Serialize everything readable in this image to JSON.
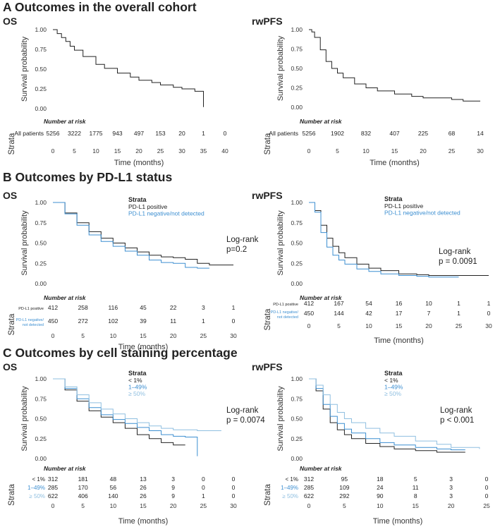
{
  "sections": [
    {
      "letter": "A",
      "title": "Outcomes in the overall cohort"
    },
    {
      "letter": "B",
      "title": "Outcomes by PD-L1 status"
    },
    {
      "letter": "C",
      "title": "Outcomes by cell staining percentage"
    }
  ],
  "chart_data": [
    {
      "id": "A-OS",
      "section": "A",
      "type": "line",
      "title": "OS",
      "xlabel": "Time (months)",
      "ylabel": "Survival probability",
      "strata_label": "Strata",
      "xlim": [
        0,
        40
      ],
      "xticks": [
        0,
        5,
        10,
        15,
        20,
        25,
        30,
        35,
        40
      ],
      "ylim": [
        0,
        1
      ],
      "yticks": [
        "0.00",
        "0.25",
        "0.50",
        "0.75",
        "1.00"
      ],
      "legend": null,
      "annotation": null,
      "risk_title": "Number at risk",
      "risk_times": [
        0,
        5,
        10,
        15,
        20,
        25,
        30,
        35,
        40
      ],
      "series": [
        {
          "name": "All patients",
          "color": "#222222",
          "x": [
            0,
            1,
            2,
            3,
            4,
            5,
            7,
            10,
            12,
            15,
            18,
            20,
            23,
            25,
            28,
            30,
            33,
            35,
            35
          ],
          "y": [
            1,
            0.95,
            0.9,
            0.85,
            0.79,
            0.74,
            0.66,
            0.56,
            0.51,
            0.45,
            0.4,
            0.36,
            0.33,
            0.3,
            0.27,
            0.25,
            0.22,
            0.21,
            0.02
          ],
          "risk": [
            "5256",
            "3222",
            "1775",
            "943",
            "497",
            "153",
            "20",
            "1",
            "0"
          ]
        }
      ]
    },
    {
      "id": "A-rwPFS",
      "section": "A",
      "type": "line",
      "title": "rwPFS",
      "xlabel": "Time (months)",
      "ylabel": "Survival probability",
      "strata_label": "Strata",
      "xlim": [
        0,
        30
      ],
      "xticks": [
        0,
        5,
        10,
        15,
        20,
        25,
        30
      ],
      "ylim": [
        0,
        1
      ],
      "yticks": [
        "0.00",
        "0.25",
        "0.50",
        "0.75",
        "1.00"
      ],
      "legend": null,
      "annotation": null,
      "risk_title": "Number at risk",
      "risk_times": [
        0,
        5,
        10,
        15,
        20,
        25,
        30
      ],
      "series": [
        {
          "name": "All patients",
          "color": "#222222",
          "x": [
            0,
            0.5,
            1,
            2,
            3,
            4,
            5,
            6,
            8,
            10,
            12,
            15,
            18,
            20,
            25,
            27,
            30
          ],
          "y": [
            1,
            0.97,
            0.9,
            0.74,
            0.59,
            0.5,
            0.44,
            0.38,
            0.3,
            0.25,
            0.21,
            0.17,
            0.14,
            0.12,
            0.1,
            0.08,
            0.08
          ],
          "risk": [
            "5256",
            "1902",
            "832",
            "407",
            "225",
            "68",
            "14"
          ]
        }
      ]
    },
    {
      "id": "B-OS",
      "section": "B",
      "type": "line",
      "title": "OS",
      "xlabel": "Time (months)",
      "ylabel": "Survival probability",
      "strata_label": "Strata",
      "xlim": [
        0,
        30
      ],
      "xticks": [
        0,
        5,
        10,
        15,
        20,
        25,
        30
      ],
      "ylim": [
        0,
        1
      ],
      "yticks": [
        "0.00",
        "0.25",
        "0.50",
        "0.75",
        "1.00"
      ],
      "legend": {
        "title": "Strata",
        "items": [
          "PD-L1 positive",
          "PD-L1 negative/not detected"
        ]
      },
      "annotation": [
        "Log-rank",
        "p=0.2"
      ],
      "risk_title": "Number at risk",
      "risk_times": [
        0,
        5,
        10,
        15,
        20,
        25,
        30
      ],
      "series": [
        {
          "name": "PD-L1 positive",
          "risk_label": [
            "PD-L1 positive"
          ],
          "color": "#222222",
          "x": [
            0,
            2,
            4,
            6,
            8,
            10,
            12,
            14,
            16,
            18,
            20,
            22,
            24,
            26,
            30
          ],
          "y": [
            1,
            0.87,
            0.75,
            0.64,
            0.56,
            0.5,
            0.44,
            0.39,
            0.35,
            0.33,
            0.32,
            0.3,
            0.25,
            0.23,
            0.23
          ],
          "risk": [
            "412",
            "258",
            "116",
            "45",
            "22",
            "3",
            "1"
          ]
        },
        {
          "name": "PD-L1 negative/not detected",
          "risk_label": [
            "PD-L1 negative/",
            "not detected"
          ],
          "color": "#3d8fd1",
          "x": [
            0,
            2,
            4,
            6,
            8,
            10,
            12,
            14,
            16,
            18,
            20,
            22,
            24,
            26
          ],
          "y": [
            1,
            0.86,
            0.72,
            0.6,
            0.52,
            0.46,
            0.4,
            0.35,
            0.29,
            0.26,
            0.25,
            0.2,
            0.19,
            0.19
          ],
          "risk": [
            "450",
            "272",
            "102",
            "39",
            "11",
            "1",
            "0"
          ]
        }
      ]
    },
    {
      "id": "B-rwPFS",
      "section": "B",
      "type": "line",
      "title": "rwPFS",
      "xlabel": "Time (months)",
      "ylabel": "Survival probability",
      "strata_label": "Strata",
      "xlim": [
        0,
        30
      ],
      "xticks": [
        0,
        5,
        10,
        15,
        20,
        25,
        30
      ],
      "ylim": [
        0,
        1
      ],
      "yticks": [
        "0.00",
        "0.25",
        "0.50",
        "0.75",
        "1.00"
      ],
      "legend": {
        "title": "Strata",
        "items": [
          "PD-L1 positive",
          "PD-L1 negative/not detected"
        ]
      },
      "annotation": [
        "Log-rank",
        "p = 0.0091"
      ],
      "risk_title": "Number at risk",
      "risk_times": [
        0,
        5,
        10,
        15,
        20,
        25,
        30
      ],
      "series": [
        {
          "name": "PD-L1 positive",
          "risk_label": [
            "PD-L1 positive"
          ],
          "color": "#222222",
          "x": [
            0,
            1,
            2,
            3,
            4,
            5,
            6,
            8,
            10,
            12,
            15,
            18,
            20,
            25,
            30
          ],
          "y": [
            1,
            0.9,
            0.72,
            0.56,
            0.46,
            0.38,
            0.32,
            0.24,
            0.19,
            0.16,
            0.12,
            0.11,
            0.1,
            0.1,
            0.1
          ],
          "risk": [
            "412",
            "167",
            "54",
            "16",
            "10",
            "1",
            "1"
          ]
        },
        {
          "name": "PD-L1 negative/not detected",
          "risk_label": [
            "PD-L1 negative/",
            "not detected"
          ],
          "color": "#3d8fd1",
          "x": [
            0,
            1,
            2,
            3,
            4,
            5,
            6,
            8,
            10,
            12,
            15,
            18,
            20,
            25
          ],
          "y": [
            1,
            0.88,
            0.63,
            0.45,
            0.35,
            0.29,
            0.24,
            0.18,
            0.15,
            0.12,
            0.1,
            0.09,
            0.08,
            0.08
          ],
          "risk": [
            "450",
            "144",
            "42",
            "17",
            "7",
            "1",
            "0"
          ]
        }
      ]
    },
    {
      "id": "C-OS",
      "section": "C",
      "type": "line",
      "title": "OS",
      "xlabel": "Time (months)",
      "ylabel": "Survival probability",
      "strata_label": "Strata",
      "xlim": [
        0,
        30
      ],
      "xticks": [
        0,
        5,
        10,
        15,
        20,
        25,
        30
      ],
      "ylim": [
        0,
        1
      ],
      "yticks": [
        "0.00",
        "0.25",
        "0.50",
        "0.75",
        "1.00"
      ],
      "legend": {
        "title": "Strata",
        "items": [
          "< 1%",
          "1–49%",
          "≥ 50%"
        ]
      },
      "annotation": [
        "Log-rank",
        "p = 0.0074"
      ],
      "risk_title": "Number at risk",
      "risk_times": [
        0,
        5,
        10,
        15,
        20,
        25,
        30
      ],
      "series": [
        {
          "name": "< 1%",
          "risk_label": [
            "< 1%"
          ],
          "color": "#222222",
          "x": [
            0,
            2,
            4,
            6,
            8,
            10,
            12,
            14,
            16,
            18,
            20,
            22
          ],
          "y": [
            1,
            0.86,
            0.72,
            0.6,
            0.52,
            0.45,
            0.38,
            0.3,
            0.25,
            0.2,
            0.17,
            0.17
          ],
          "risk": [
            "312",
            "181",
            "48",
            "13",
            "3",
            "0",
            "0"
          ]
        },
        {
          "name": "1–49%",
          "risk_label": [
            "1–49%"
          ],
          "color": "#3d8fd1",
          "x": [
            0,
            2,
            4,
            6,
            8,
            10,
            12,
            14,
            16,
            18,
            20,
            22,
            24,
            24
          ],
          "y": [
            1,
            0.88,
            0.75,
            0.64,
            0.55,
            0.49,
            0.44,
            0.39,
            0.35,
            0.3,
            0.28,
            0.27,
            0.27,
            0.03
          ],
          "risk": [
            "285",
            "170",
            "56",
            "26",
            "9",
            "0",
            "0"
          ]
        },
        {
          "name": "≥ 50%",
          "risk_label": [
            "≥ 50%"
          ],
          "color": "#8fbfe0",
          "x": [
            0,
            2,
            4,
            6,
            8,
            10,
            12,
            14,
            16,
            18,
            20,
            24,
            28
          ],
          "y": [
            1,
            0.9,
            0.8,
            0.7,
            0.62,
            0.56,
            0.5,
            0.45,
            0.41,
            0.38,
            0.36,
            0.35,
            0.35
          ],
          "risk": [
            "622",
            "406",
            "140",
            "26",
            "9",
            "1",
            "0"
          ]
        }
      ]
    },
    {
      "id": "C-rwPFS",
      "section": "C",
      "type": "line",
      "title": "rwPFS",
      "xlabel": "Time (months)",
      "ylabel": "Survival probability",
      "strata_label": "Strata",
      "xlim": [
        0,
        25
      ],
      "xticks": [
        0,
        5,
        10,
        15,
        20,
        25
      ],
      "ylim": [
        0,
        1
      ],
      "yticks": [
        "0.00",
        "0.25",
        "0.50",
        "0.75",
        "1.00"
      ],
      "legend": {
        "title": "Strata",
        "items": [
          "< 1%",
          "1–49%",
          "≥ 50%"
        ]
      },
      "annotation": [
        "Log-rank",
        "p < 0.001"
      ],
      "risk_title": "Number at risk",
      "risk_times": [
        0,
        5,
        10,
        15,
        20,
        25
      ],
      "series": [
        {
          "name": "< 1%",
          "risk_label": [
            "< 1%"
          ],
          "color": "#222222",
          "x": [
            0,
            1,
            2,
            3,
            4,
            5,
            6,
            8,
            10,
            12,
            15,
            18,
            20,
            22
          ],
          "y": [
            1,
            0.85,
            0.62,
            0.45,
            0.36,
            0.3,
            0.25,
            0.19,
            0.15,
            0.12,
            0.1,
            0.08,
            0.08,
            0.08
          ],
          "risk": [
            "312",
            "95",
            "18",
            "5",
            "3",
            "0"
          ]
        },
        {
          "name": "1–49%",
          "risk_label": [
            "1–49%"
          ],
          "color": "#3d8fd1",
          "x": [
            0,
            1,
            2,
            3,
            4,
            5,
            6,
            8,
            10,
            12,
            15,
            18,
            20,
            22
          ],
          "y": [
            1,
            0.88,
            0.68,
            0.53,
            0.44,
            0.37,
            0.32,
            0.25,
            0.2,
            0.17,
            0.14,
            0.12,
            0.11,
            0.11
          ],
          "risk": [
            "285",
            "109",
            "24",
            "11",
            "3",
            "0"
          ]
        },
        {
          "name": "≥ 50%",
          "risk_label": [
            "≥ 50%"
          ],
          "color": "#8fbfe0",
          "x": [
            0,
            1,
            2,
            3,
            4,
            5,
            6,
            8,
            10,
            12,
            15,
            18,
            20,
            24
          ],
          "y": [
            1,
            0.92,
            0.8,
            0.68,
            0.58,
            0.5,
            0.45,
            0.38,
            0.32,
            0.28,
            0.22,
            0.18,
            0.14,
            0.12
          ],
          "risk": [
            "622",
            "292",
            "90",
            "8",
            "3",
            "0"
          ]
        }
      ]
    }
  ]
}
